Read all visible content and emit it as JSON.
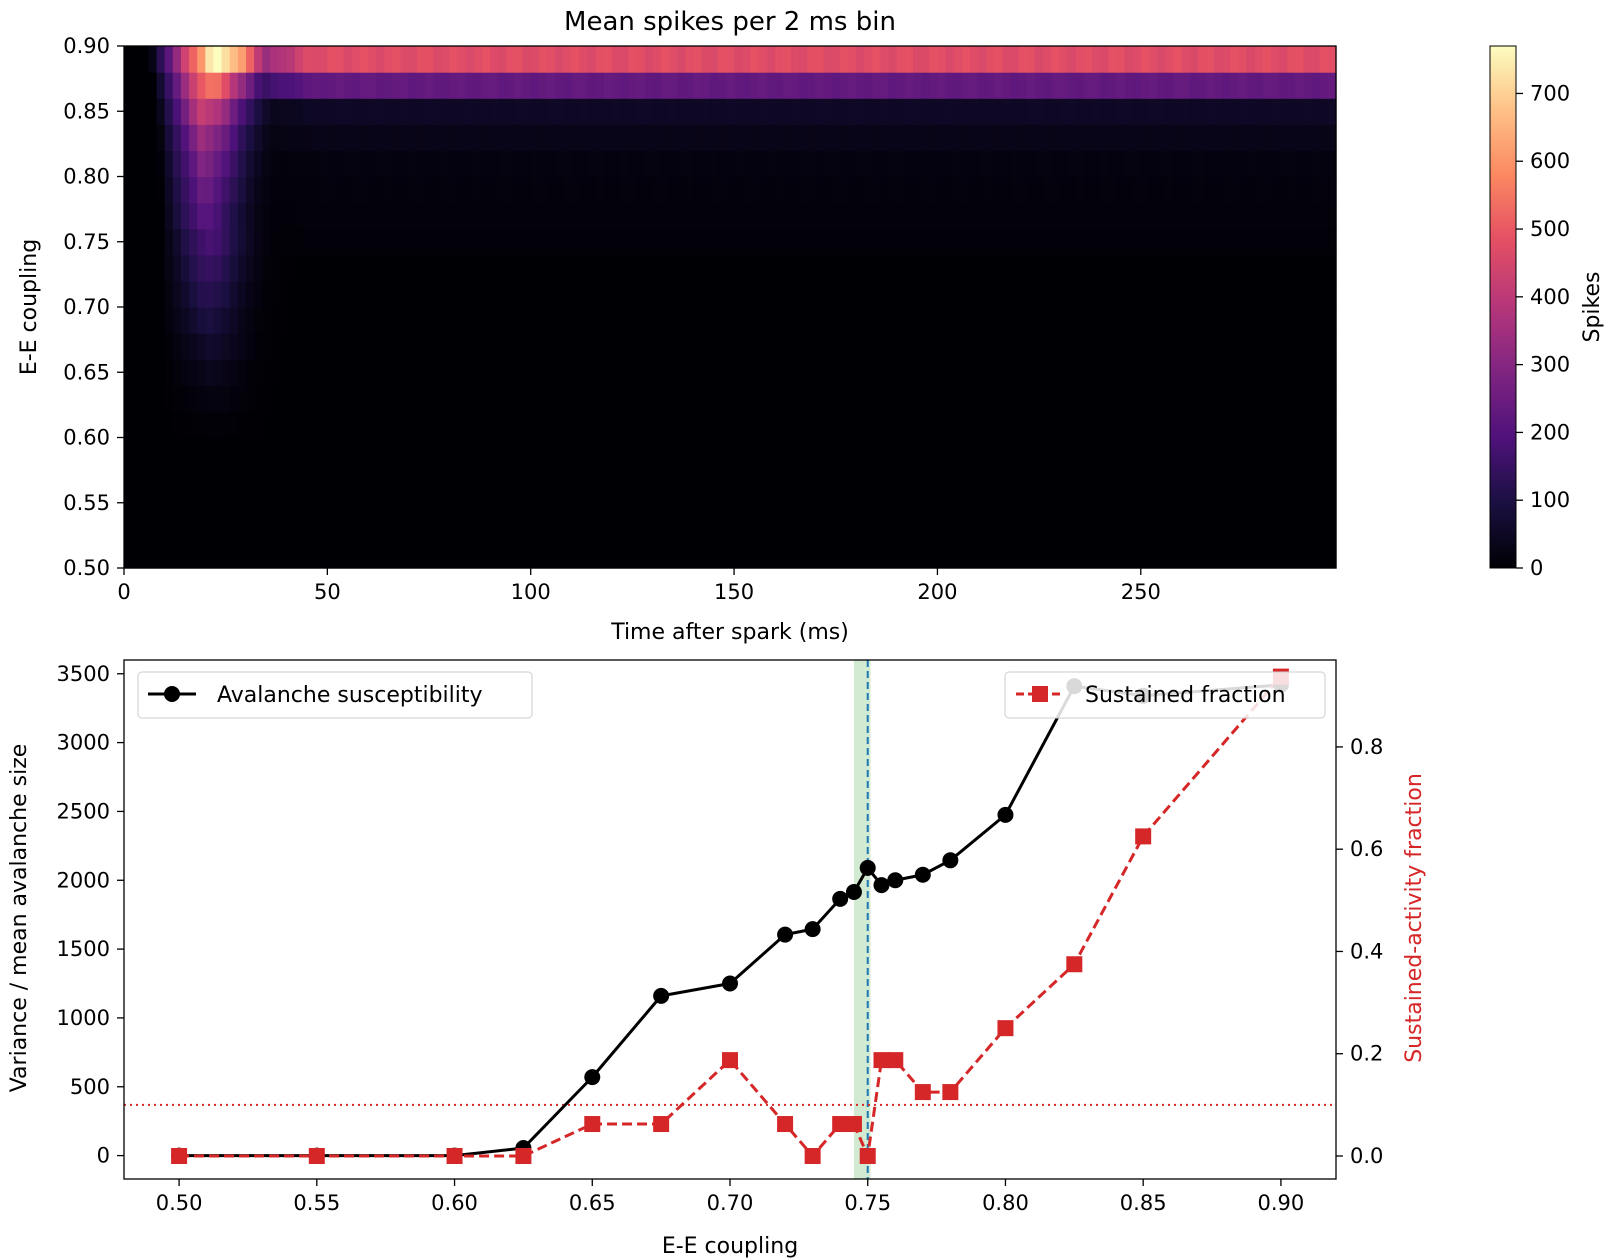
{
  "chart_data": [
    {
      "type": "heatmap",
      "title": "Mean spikes per 2 ms bin",
      "xlabel": "Time after spark (ms)",
      "ylabel": "E-E coupling",
      "xlim": [
        0,
        298
      ],
      "ylim": [
        0.5,
        0.9
      ],
      "xticks": [
        "0",
        "50",
        "100",
        "150",
        "200",
        "250"
      ],
      "yticks": [
        "0.50",
        "0.55",
        "0.60",
        "0.65",
        "0.70",
        "0.75",
        "0.80",
        "0.85",
        "0.90"
      ],
      "colormap": "magma",
      "colorbar": {
        "label": "Spikes",
        "min": 0,
        "max": 770,
        "ticks": [
          "0",
          "100",
          "200",
          "300",
          "400",
          "500",
          "600",
          "700"
        ]
      },
      "bin_ms": 2,
      "rows": [
        {
          "y0": 0.5,
          "y1": 0.6,
          "peak": 0,
          "sustain": 0,
          "t_peak": 22
        },
        {
          "y0": 0.6,
          "y1": 0.62,
          "peak": 6,
          "sustain": 0,
          "t_peak": 22
        },
        {
          "y0": 0.62,
          "y1": 0.64,
          "peak": 18,
          "sustain": 0,
          "t_peak": 22
        },
        {
          "y0": 0.64,
          "y1": 0.66,
          "peak": 35,
          "sustain": 0,
          "t_peak": 21
        },
        {
          "y0": 0.66,
          "y1": 0.68,
          "peak": 60,
          "sustain": 0,
          "t_peak": 21
        },
        {
          "y0": 0.68,
          "y1": 0.7,
          "peak": 90,
          "sustain": 0,
          "t_peak": 20
        },
        {
          "y0": 0.7,
          "y1": 0.72,
          "peak": 120,
          "sustain": 0,
          "t_peak": 20
        },
        {
          "y0": 0.72,
          "y1": 0.74,
          "peak": 150,
          "sustain": 0,
          "t_peak": 20
        },
        {
          "y0": 0.74,
          "y1": 0.76,
          "peak": 180,
          "sustain": 8,
          "t_peak": 20
        },
        {
          "y0": 0.76,
          "y1": 0.78,
          "peak": 210,
          "sustain": 10,
          "t_peak": 19
        },
        {
          "y0": 0.78,
          "y1": 0.8,
          "peak": 240,
          "sustain": 12,
          "t_peak": 19
        },
        {
          "y0": 0.8,
          "y1": 0.82,
          "peak": 280,
          "sustain": 15,
          "t_peak": 19
        },
        {
          "y0": 0.82,
          "y1": 0.84,
          "peak": 330,
          "sustain": 30,
          "t_peak": 19
        },
        {
          "y0": 0.84,
          "y1": 0.86,
          "peak": 420,
          "sustain": 50,
          "t_peak": 19
        },
        {
          "y0": 0.86,
          "y1": 0.88,
          "peak": 550,
          "sustain": 230,
          "t_peak": 20
        },
        {
          "y0": 0.88,
          "y1": 0.9,
          "peak": 770,
          "sustain": 470,
          "t_peak": 22
        }
      ]
    },
    {
      "type": "line",
      "xlabel": "E-E coupling",
      "ylabel": "Variance / mean avalanche size",
      "y2label": "Sustained-activity fraction",
      "xlim": [
        0.48,
        0.92
      ],
      "ylim": [
        -170,
        3600
      ],
      "y2lim": [
        -0.045,
        0.97
      ],
      "xticks": [
        "0.50",
        "0.55",
        "0.60",
        "0.65",
        "0.70",
        "0.75",
        "0.80",
        "0.85",
        "0.90"
      ],
      "yticks": [
        "0",
        "500",
        "1000",
        "1500",
        "2000",
        "2500",
        "3000",
        "3500"
      ],
      "y2ticks": [
        "0.0",
        "0.2",
        "0.4",
        "0.6",
        "0.8"
      ],
      "series": [
        {
          "name": "Avalanche susceptibility",
          "axis": "left",
          "color": "#000000",
          "marker": "circle",
          "linestyle": "solid",
          "x": [
            0.5,
            0.55,
            0.6,
            0.625,
            0.65,
            0.675,
            0.7,
            0.72,
            0.73,
            0.74,
            0.745,
            0.75,
            0.755,
            0.76,
            0.77,
            0.78,
            0.8,
            0.825,
            0.85,
            0.9
          ],
          "y": [
            0,
            0,
            0,
            55,
            570,
            1160,
            1250,
            1605,
            1645,
            1865,
            1915,
            2090,
            1965,
            2000,
            2040,
            2145,
            2475,
            3410,
            3340,
            3420
          ]
        },
        {
          "name": "Sustained fraction",
          "axis": "right",
          "color": "#d62728",
          "marker": "square",
          "linestyle": "dashed",
          "x": [
            0.5,
            0.55,
            0.6,
            0.625,
            0.65,
            0.675,
            0.7,
            0.72,
            0.73,
            0.74,
            0.745,
            0.75,
            0.755,
            0.76,
            0.77,
            0.78,
            0.8,
            0.825,
            0.85,
            0.9
          ],
          "y": [
            0,
            0,
            0,
            0,
            0.0625,
            0.0625,
            0.1875,
            0.0625,
            0,
            0.0625,
            0.0625,
            0,
            0.1875,
            0.1875,
            0.125,
            0.125,
            0.25,
            0.375,
            0.625,
            0.9375
          ]
        }
      ],
      "vline": {
        "x": 0.75,
        "color": "#1f77b4",
        "linestyle": "dashed"
      },
      "vspan": {
        "x0": 0.745,
        "x1": 0.751,
        "color": "#2ca02c"
      },
      "hline": {
        "y2": 0.1,
        "color": "#d62728",
        "linestyle": "dotted"
      },
      "legend_left_placement": "upper-left",
      "legend_right_placement": "upper-right"
    }
  ]
}
